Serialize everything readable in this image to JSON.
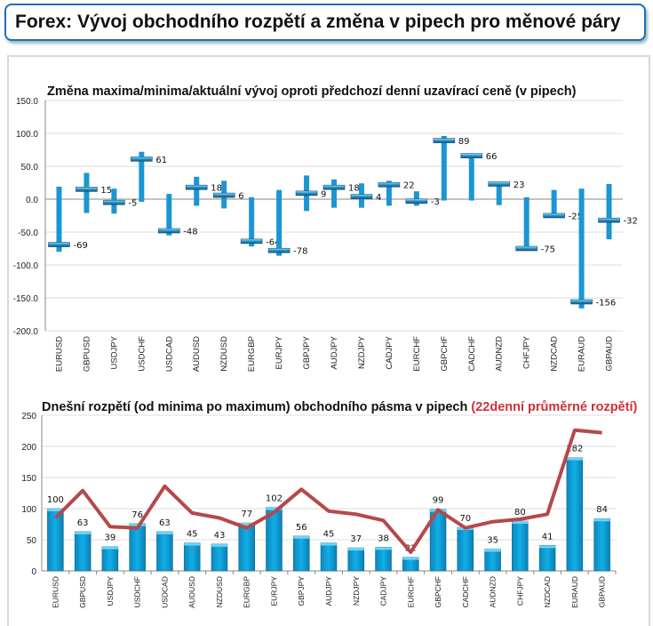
{
  "header": {
    "title": "Forex: Vývoj obchodního rozpětí a změna v pipech pro měnové páry"
  },
  "chart_data": [
    {
      "type": "range",
      "title": "Změna maxima/minima/aktuální vývoj oproti předchozí denní uzavírací ceně (v pipech)",
      "categories": [
        "EURUSD",
        "GBPUSD",
        "USDJPY",
        "USDCHF",
        "USDCAD",
        "AUDUSD",
        "NZDUSD",
        "EURGBP",
        "EURJPY",
        "GBPJPY",
        "AUDJPY",
        "NZDJPY",
        "CADJPY",
        "EURCHF",
        "GBPCHF",
        "CADCHF",
        "AUDNZD",
        "CHFJPY",
        "NZDCAD",
        "EURAUD",
        "GBPAUD"
      ],
      "high": [
        19,
        40,
        16,
        72,
        8,
        34,
        28,
        3,
        14,
        36,
        30,
        24,
        28,
        12,
        96,
        66,
        23,
        3,
        14,
        16,
        23
      ],
      "low": [
        -80,
        -21,
        -22,
        -4,
        -55,
        -10,
        -14,
        -72,
        -86,
        -18,
        -13,
        -13,
        -10,
        -10,
        -2,
        -2,
        -9,
        -75,
        -25,
        -166,
        -61
      ],
      "current": [
        -69,
        15,
        -5,
        61,
        -48,
        18,
        6,
        -64,
        -78,
        9,
        18,
        4,
        22,
        -3,
        89,
        66,
        23,
        -75,
        -25,
        -156,
        -32
      ],
      "ylim": [
        -200,
        150
      ],
      "yticks": [
        "150.0",
        "100.0",
        "50.0",
        "0.0",
        "-50.0",
        "-100.0",
        "-150.0",
        "-200.0"
      ],
      "grid": true,
      "color": "#1a96d4"
    },
    {
      "type": "bar+line",
      "title": "Dnešní rozpětí (od minima po maximum) obchodního pásma v pipech",
      "title_highlight": "(22denní průměrné rozpětí)",
      "categories": [
        "EURUSD",
        "GBPUSD",
        "USDJPY",
        "USDCHF",
        "USDCAD",
        "AUDUSD",
        "NZDUSD",
        "EURGBP",
        "EURJPY",
        "GBPJPY",
        "AUDJPY",
        "NZDJPY",
        "CADJPY",
        "EURCHF",
        "GBPCHF",
        "CADCHF",
        "AUDNZD",
        "CHFJPY",
        "NZDCAD",
        "EURAUD",
        "GBPAUD"
      ],
      "bar_values": [
        100,
        63,
        39,
        76,
        63,
        45,
        43,
        77,
        102,
        56,
        45,
        37,
        38,
        22,
        99,
        70,
        35,
        80,
        41,
        182,
        84
      ],
      "line_values": [
        85,
        129,
        71,
        69,
        136,
        93,
        85,
        69,
        94,
        131,
        96,
        91,
        81,
        30,
        98,
        69,
        79,
        83,
        91,
        226,
        222
      ],
      "ylim": [
        0,
        250
      ],
      "yticks": [
        "250",
        "200",
        "150",
        "100",
        "50",
        "0"
      ],
      "grid": true,
      "bar_color": "#0aa0d8",
      "line_color": "#b5484a",
      "highlight_color": "#d0303a"
    }
  ]
}
